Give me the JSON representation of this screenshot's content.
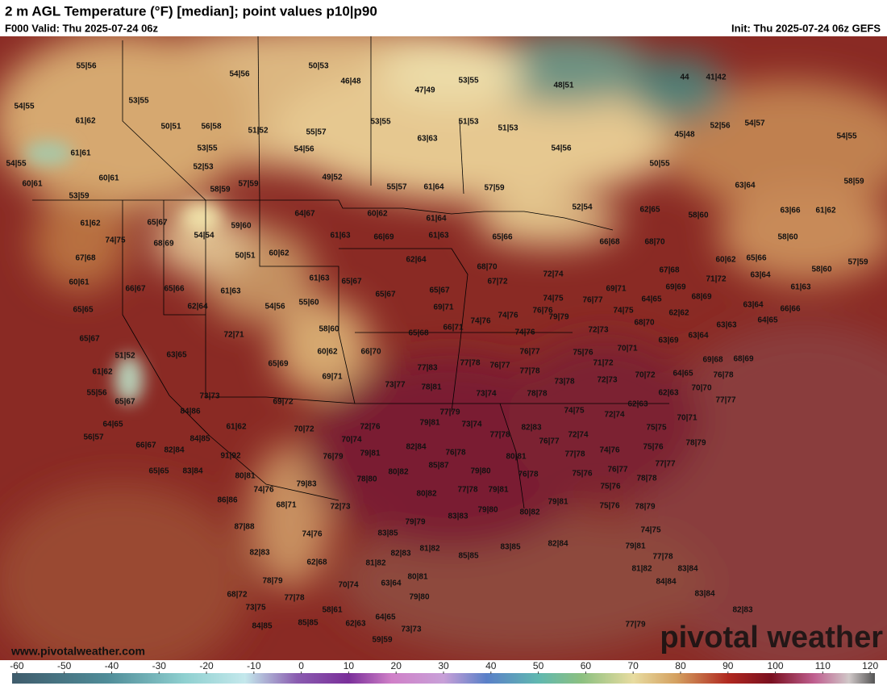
{
  "header": {
    "title": "2 m AGL Temperature (°F) [median]; point values p10|p90",
    "valid": "F000 Valid: Thu 2025-07-24 06z",
    "init": "Init: Thu 2025-07-24 06z GEFS"
  },
  "map": {
    "point_values": [
      "55|56",
      "54|56",
      "50|53",
      "46|48",
      "47|49",
      "53|55",
      "48|51",
      "44",
      "41|42",
      "54|55",
      "53|55",
      "61|62",
      "50|51",
      "56|58",
      "51|52",
      "55|57",
      "53|55",
      "63|63",
      "51|53",
      "51|53",
      "45|48",
      "52|56",
      "54|57",
      "54|55",
      "61|61",
      "53|55",
      "54|56",
      "54|56",
      "50|55",
      "54|55",
      "60|61",
      "52|53",
      "49|52",
      "60|61",
      "57|59",
      "58|59",
      "55|57",
      "61|64",
      "57|59",
      "63|64",
      "58|59",
      "53|59",
      "52|54",
      "62|65",
      "58|60",
      "63|66",
      "61|62",
      "64|67",
      "60|62",
      "61|64",
      "61|62",
      "65|67",
      "59|60",
      "54|54",
      "61|63",
      "66|69",
      "61|63",
      "65|66",
      "58|60",
      "74|75",
      "68|69",
      "66|68",
      "68|70",
      "50|51",
      "60|62",
      "62|64",
      "67|68",
      "60|62",
      "65|66",
      "57|59",
      "68|70",
      "67|68",
      "58|60",
      "61|63",
      "65|67",
      "72|74",
      "63|64",
      "71|72",
      "60|61",
      "66|67",
      "65|66",
      "67|72",
      "61|63",
      "65|67",
      "65|67",
      "69|71",
      "69|69",
      "68|69",
      "61|63",
      "74|75",
      "76|77",
      "54|56",
      "55|60",
      "62|64",
      "64|65",
      "63|64",
      "66|66",
      "65|65",
      "69|71",
      "74|76",
      "76|76",
      "79|79",
      "74|75",
      "62|62",
      "63|63",
      "64|65",
      "66|71",
      "74|76",
      "68|70",
      "58|60",
      "65|68",
      "72|71",
      "65|67",
      "74|76",
      "72|73",
      "63|64",
      "63|69",
      "60|62",
      "66|70",
      "76|77",
      "75|76",
      "70|71",
      "51|52",
      "63|65",
      "69|68",
      "68|69",
      "65|69",
      "77|83",
      "77|78",
      "76|77",
      "77|78",
      "71|72",
      "61|62",
      "69|71",
      "70|72",
      "64|65",
      "76|78",
      "72|73",
      "73|77",
      "78|81",
      "73|78",
      "70|70",
      "55|56",
      "73|73",
      "69|72",
      "73|74",
      "78|78",
      "62|63",
      "65|67",
      "77|77",
      "62|63",
      "84|86",
      "74|75",
      "72|74",
      "77|79",
      "79|81",
      "73|74",
      "61|62",
      "70|72",
      "72|76",
      "82|83",
      "75|75",
      "70|71",
      "64|65",
      "56|57",
      "84|85",
      "70|74",
      "77|78",
      "72|74",
      "74|76",
      "78|79",
      "66|67",
      "82|84",
      "76|77",
      "75|76",
      "82|84",
      "91|92",
      "76|79",
      "79|81",
      "76|78",
      "80|81",
      "77|78",
      "77|77",
      "65|65",
      "83|84",
      "85|87",
      "76|77",
      "80|81",
      "80|82",
      "79|80",
      "76|78",
      "75|76",
      "78|78",
      "79|83",
      "78|80",
      "75|76",
      "74|76",
      "77|78",
      "79|81",
      "80|82",
      "86|86",
      "68|71",
      "72|73",
      "79|81",
      "75|76",
      "78|79",
      "83|83",
      "79|80",
      "80|82",
      "87|88",
      "79|79",
      "83|85",
      "74|76",
      "74|75",
      "82|84",
      "83|85",
      "82|83",
      "82|83",
      "81|82",
      "85|85",
      "79|81",
      "77|78",
      "62|68",
      "81|82",
      "81|82",
      "83|84",
      "78|79",
      "80|81",
      "84|84",
      "70|74",
      "63|64",
      "68|72",
      "83|84",
      "77|78",
      "79|80",
      "73|75",
      "58|61",
      "82|83",
      "64|65",
      "84|85",
      "85|85",
      "62|63",
      "73|73",
      "77|79",
      "59|59"
    ]
  },
  "footer": {
    "website": "www.pivotalweather.com",
    "watermark": "pivotal weather"
  },
  "colorbar": {
    "lim": [
      -61,
      121
    ],
    "ticks": [
      -60,
      -50,
      -40,
      -30,
      -20,
      -10,
      0,
      10,
      20,
      30,
      40,
      50,
      60,
      70,
      80,
      90,
      100,
      110,
      120
    ]
  }
}
